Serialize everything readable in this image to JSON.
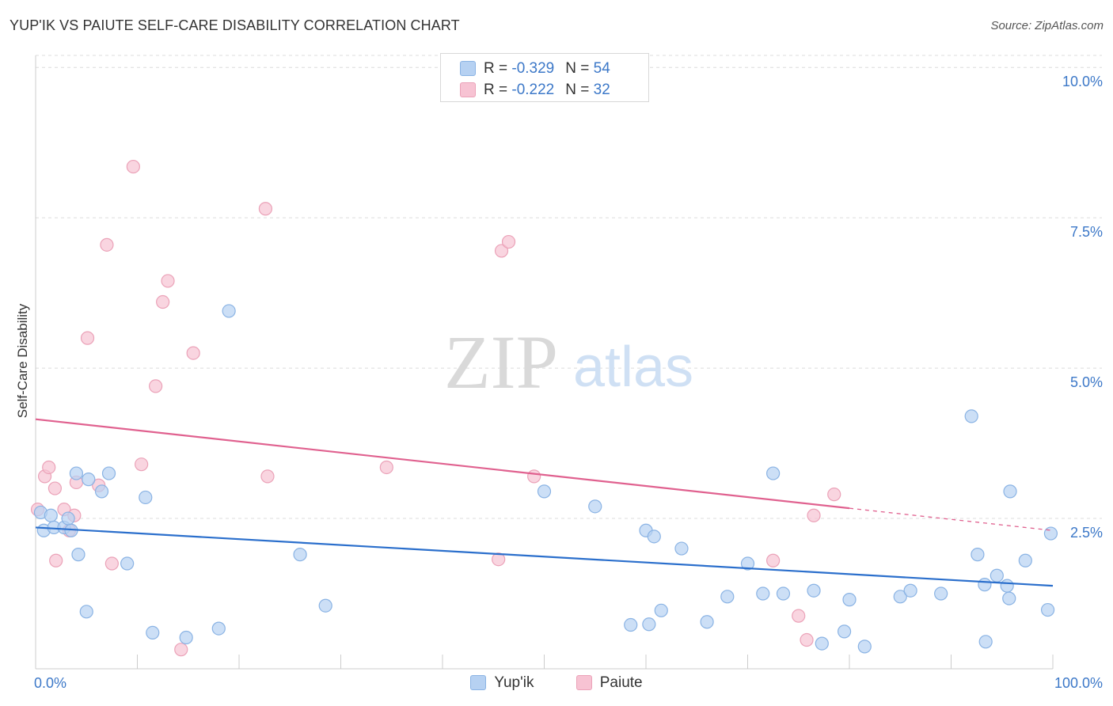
{
  "title": "YUP'IK VS PAIUTE SELF-CARE DISABILITY CORRELATION CHART",
  "source": "Source: ZipAtlas.com",
  "watermark": {
    "zip": "ZIP",
    "atlas": "atlas"
  },
  "colors": {
    "blue_fill": "#b6d1f2",
    "blue_stroke": "#8ab3e4",
    "blue_line": "#2b6fcc",
    "pink_fill": "#f7c3d3",
    "pink_stroke": "#eba2b8",
    "pink_line": "#e0618f",
    "axis_text": "#3c78c8",
    "grid": "#dcdcdc"
  },
  "legend": {
    "rows": [
      {
        "r_label": "R = ",
        "r_value": "-0.329",
        "n_label": "N = ",
        "n_value": "54",
        "series": "Yup'ik"
      },
      {
        "r_label": "R = ",
        "r_value": "-0.222",
        "n_label": "N = ",
        "n_value": "32",
        "series": "Paiute"
      }
    ]
  },
  "bottom_legend": [
    "Yup'ik",
    "Paiute"
  ],
  "chart_data": {
    "type": "scatter",
    "title": "YUP'IK VS PAIUTE SELF-CARE DISABILITY CORRELATION CHART",
    "xlabel": "",
    "ylabel": "Self-Care Disability",
    "xlim": [
      0,
      100
    ],
    "ylim": [
      0,
      10.2
    ],
    "x_tick_labels": [
      "0.0%",
      "100.0%"
    ],
    "y_ticks": [
      2.5,
      5.0,
      7.5,
      10.0
    ],
    "y_tick_labels": [
      "2.5%",
      "5.0%",
      "7.5%",
      "10.0%"
    ],
    "grid": true,
    "legend_position": "top-center",
    "series": [
      {
        "name": "Yup'ik",
        "r": -0.329,
        "n": 54,
        "trend": {
          "x": [
            0,
            100
          ],
          "y": [
            2.35,
            1.38
          ],
          "dashed_from": null
        },
        "points": [
          [
            0.5,
            2.6
          ],
          [
            0.8,
            2.3
          ],
          [
            1.5,
            2.55
          ],
          [
            1.8,
            2.35
          ],
          [
            2.8,
            2.35
          ],
          [
            3.2,
            2.5
          ],
          [
            3.5,
            2.3
          ],
          [
            4.0,
            3.25
          ],
          [
            4.2,
            1.9
          ],
          [
            5.0,
            0.95
          ],
          [
            5.2,
            3.15
          ],
          [
            6.5,
            2.95
          ],
          [
            7.2,
            3.25
          ],
          [
            9.0,
            1.75
          ],
          [
            10.8,
            2.85
          ],
          [
            11.5,
            0.6
          ],
          [
            14.8,
            0.52
          ],
          [
            18.0,
            0.67
          ],
          [
            19.0,
            5.95
          ],
          [
            26.0,
            1.9
          ],
          [
            28.5,
            1.05
          ],
          [
            50.0,
            2.95
          ],
          [
            55.0,
            2.7
          ],
          [
            58.5,
            0.73
          ],
          [
            60.0,
            2.3
          ],
          [
            60.3,
            0.74
          ],
          [
            60.8,
            2.2
          ],
          [
            61.5,
            0.97
          ],
          [
            63.5,
            2.0
          ],
          [
            66.0,
            0.78
          ],
          [
            68.0,
            1.2
          ],
          [
            70.0,
            1.75
          ],
          [
            71.5,
            1.25
          ],
          [
            72.5,
            3.25
          ],
          [
            73.5,
            1.25
          ],
          [
            76.5,
            1.3
          ],
          [
            77.3,
            0.42
          ],
          [
            79.5,
            0.62
          ],
          [
            80.0,
            1.15
          ],
          [
            81.5,
            0.37
          ],
          [
            85.0,
            1.2
          ],
          [
            86.0,
            1.3
          ],
          [
            89.0,
            1.25
          ],
          [
            92.0,
            4.2
          ],
          [
            92.6,
            1.9
          ],
          [
            93.4,
            0.45
          ],
          [
            93.3,
            1.4
          ],
          [
            94.5,
            1.55
          ],
          [
            95.5,
            1.38
          ],
          [
            95.7,
            1.17
          ],
          [
            95.8,
            2.95
          ],
          [
            97.3,
            1.8
          ],
          [
            99.5,
            0.98
          ],
          [
            99.8,
            2.25
          ]
        ]
      },
      {
        "name": "Paiute",
        "r": -0.222,
        "n": 32,
        "trend": {
          "x": [
            0,
            100
          ],
          "y": [
            4.15,
            2.3
          ],
          "dashed_from": 80
        },
        "points": [
          [
            0.2,
            2.65
          ],
          [
            0.9,
            3.2
          ],
          [
            1.3,
            3.35
          ],
          [
            1.9,
            3.0
          ],
          [
            2.0,
            1.8
          ],
          [
            2.8,
            2.65
          ],
          [
            3.3,
            2.3
          ],
          [
            3.8,
            2.55
          ],
          [
            4.0,
            3.1
          ],
          [
            5.1,
            5.5
          ],
          [
            6.2,
            3.05
          ],
          [
            7.0,
            7.05
          ],
          [
            7.5,
            1.75
          ],
          [
            9.6,
            8.35
          ],
          [
            10.4,
            3.4
          ],
          [
            11.8,
            4.7
          ],
          [
            12.5,
            6.1
          ],
          [
            13.0,
            6.45
          ],
          [
            14.3,
            0.32
          ],
          [
            15.5,
            5.25
          ],
          [
            22.6,
            7.65
          ],
          [
            22.8,
            3.2
          ],
          [
            34.5,
            3.35
          ],
          [
            45.5,
            1.82
          ],
          [
            45.8,
            6.95
          ],
          [
            46.5,
            7.1
          ],
          [
            49.0,
            3.2
          ],
          [
            72.5,
            1.8
          ],
          [
            75.0,
            0.88
          ],
          [
            75.8,
            0.48
          ],
          [
            76.5,
            2.55
          ],
          [
            78.5,
            2.9
          ]
        ]
      }
    ]
  }
}
